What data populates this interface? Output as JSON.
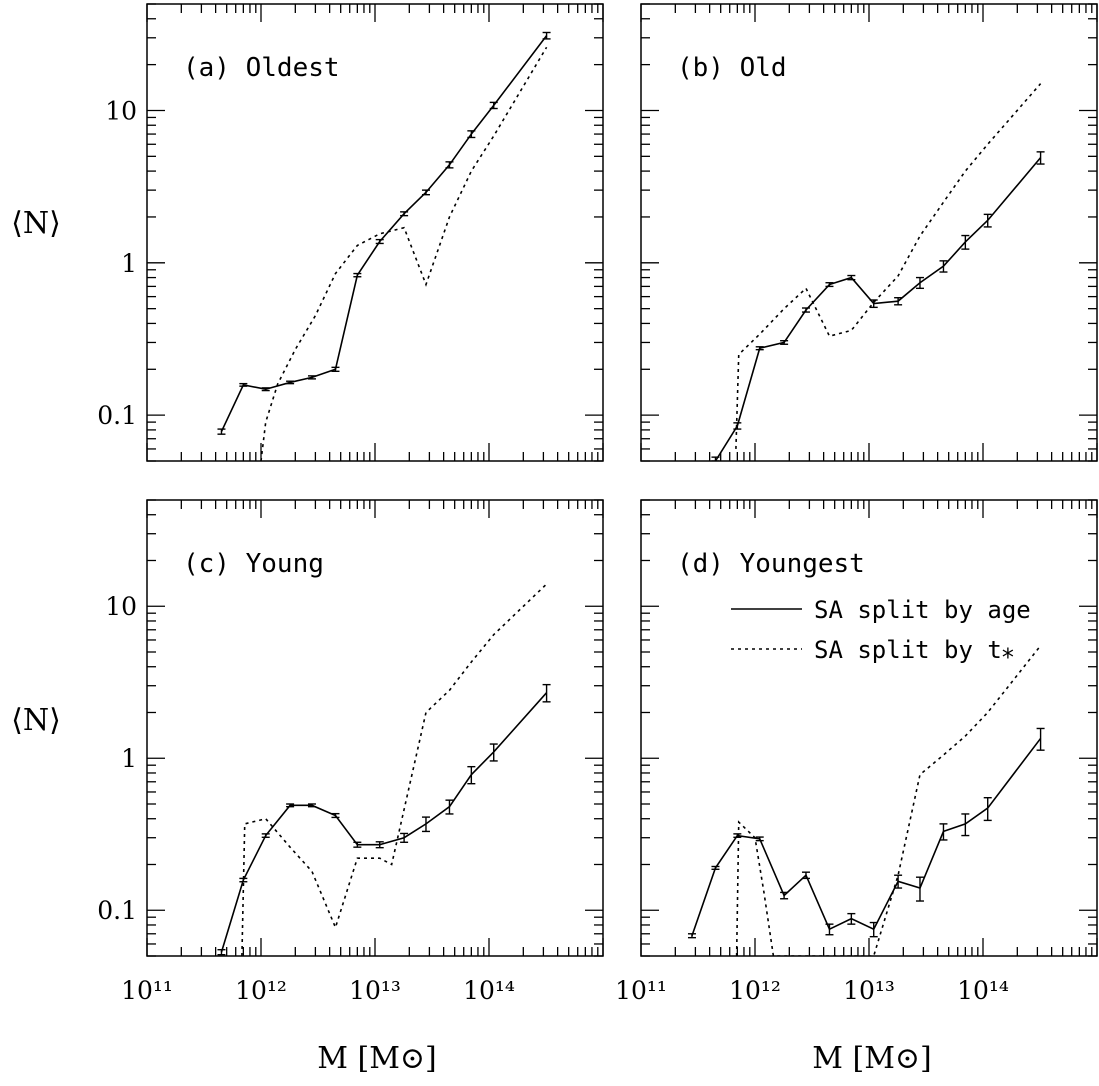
{
  "figure": {
    "ylabel": "⟨N⟩",
    "xlabel": "M [M⊙]",
    "x_tick_labels": [
      "10¹¹",
      "10¹²",
      "10¹³",
      "10¹⁴"
    ],
    "y_tick_labels": [
      "0.1",
      "1",
      "10"
    ],
    "legend": {
      "solid": "SA split by age",
      "dotted": "SA split by t⁎",
      "placement": "inside panel (d), upper right"
    }
  },
  "chart_data": [
    {
      "type": "line",
      "panel": "a",
      "title": "(a) Oldest",
      "x_scale": "log",
      "y_scale": "log",
      "xlim": [
        100000000000.0,
        1000000000000000.0
      ],
      "ylim": [
        0.05,
        50
      ],
      "series": [
        {
          "name": "SA split by age",
          "style": "solid",
          "x": [
            450000000000.0,
            700000000000.0,
            1100000000000.0,
            1800000000000.0,
            2800000000000.0,
            4500000000000.0,
            7000000000000.0,
            11000000000000.0,
            18000000000000.0,
            28000000000000.0,
            45000000000000.0,
            70000000000000.0,
            110000000000000.0,
            320000000000000.0
          ],
          "y": [
            0.078,
            0.158,
            0.148,
            0.164,
            0.177,
            0.2,
            0.83,
            1.38,
            2.1,
            2.9,
            4.4,
            7.0,
            10.8,
            31
          ],
          "err": [
            0.003,
            0.003,
            0.003,
            0.003,
            0.004,
            0.006,
            0.02,
            0.04,
            0.06,
            0.1,
            0.2,
            0.35,
            0.5,
            1.5
          ]
        },
        {
          "name": "SA split by t⁎",
          "style": "dotted",
          "x": [
            1000000000000.0,
            1100000000000.0,
            1400000000000.0,
            2000000000000.0,
            3000000000000.0,
            4500000000000.0,
            7000000000000.0,
            11000000000000.0,
            18000000000000.0,
            28000000000000.0,
            45000000000000.0,
            70000000000000.0,
            110000000000000.0,
            320000000000000.0
          ],
          "y": [
            0.05,
            0.09,
            0.16,
            0.27,
            0.45,
            0.85,
            1.3,
            1.55,
            1.7,
            0.72,
            2.0,
            4.0,
            6.8,
            26
          ]
        }
      ]
    },
    {
      "type": "line",
      "panel": "b",
      "title": "(b) Old",
      "x_scale": "log",
      "y_scale": "log",
      "xlim": [
        100000000000.0,
        1000000000000000.0
      ],
      "ylim": [
        0.05,
        50
      ],
      "series": [
        {
          "name": "SA split by age",
          "style": "solid",
          "x": [
            450000000000.0,
            700000000000.0,
            1100000000000.0,
            1800000000000.0,
            2800000000000.0,
            4500000000000.0,
            7000000000000.0,
            11000000000000.0,
            18000000000000.0,
            28000000000000.0,
            45000000000000.0,
            70000000000000.0,
            110000000000000.0,
            320000000000000.0
          ],
          "y": [
            0.05,
            0.085,
            0.275,
            0.3,
            0.49,
            0.72,
            0.8,
            0.54,
            0.56,
            0.74,
            0.95,
            1.37,
            1.9,
            4.9
          ],
          "err": [
            0.003,
            0.004,
            0.006,
            0.008,
            0.015,
            0.02,
            0.025,
            0.03,
            0.03,
            0.06,
            0.08,
            0.14,
            0.18,
            0.45
          ]
        },
        {
          "name": "SA split by t⁎",
          "style": "dotted",
          "x": [
            680000000000.0,
            720000000000.0,
            1100000000000.0,
            1800000000000.0,
            2800000000000.0,
            4500000000000.0,
            7000000000000.0,
            11000000000000.0,
            18000000000000.0,
            28000000000000.0,
            45000000000000.0,
            70000000000000.0,
            110000000000000.0,
            320000000000000.0
          ],
          "y": [
            0.06,
            0.25,
            0.34,
            0.5,
            0.68,
            0.33,
            0.36,
            0.55,
            0.82,
            1.5,
            2.5,
            4.0,
            6.0,
            15
          ]
        }
      ]
    },
    {
      "type": "line",
      "panel": "c",
      "title": "(c) Young",
      "x_scale": "log",
      "y_scale": "log",
      "xlim": [
        100000000000.0,
        1000000000000000.0
      ],
      "ylim": [
        0.05,
        50
      ],
      "series": [
        {
          "name": "SA split by age",
          "style": "solid",
          "x": [
            450000000000.0,
            700000000000.0,
            1100000000000.0,
            1800000000000.0,
            2800000000000.0,
            4500000000000.0,
            7000000000000.0,
            11000000000000.0,
            18000000000000.0,
            28000000000000.0,
            45000000000000.0,
            70000000000000.0,
            110000000000000.0,
            320000000000000.0
          ],
          "y": [
            0.053,
            0.158,
            0.31,
            0.49,
            0.49,
            0.42,
            0.27,
            0.27,
            0.3,
            0.37,
            0.48,
            0.78,
            1.1,
            2.7
          ],
          "err": [
            0.002,
            0.004,
            0.008,
            0.01,
            0.01,
            0.012,
            0.01,
            0.012,
            0.02,
            0.04,
            0.05,
            0.1,
            0.14,
            0.35
          ]
        },
        {
          "name": "SA split by t⁎",
          "style": "dotted",
          "x": [
            680000000000.0,
            720000000000.0,
            1100000000000.0,
            1800000000000.0,
            2800000000000.0,
            4500000000000.0,
            7000000000000.0,
            11000000000000.0,
            14000000000000.0,
            28000000000000.0,
            45000000000000.0,
            70000000000000.0,
            110000000000000.0,
            320000000000000.0
          ],
          "y": [
            0.05,
            0.37,
            0.4,
            0.26,
            0.18,
            0.077,
            0.22,
            0.22,
            0.2,
            2.0,
            2.8,
            4.3,
            6.5,
            14
          ]
        }
      ]
    },
    {
      "type": "line",
      "panel": "d",
      "title": "(d) Youngest",
      "x_scale": "log",
      "y_scale": "log",
      "xlim": [
        100000000000.0,
        1000000000000000.0
      ],
      "ylim": [
        0.05,
        50
      ],
      "series": [
        {
          "name": "SA split by age",
          "style": "solid",
          "x": [
            280000000000.0,
            450000000000.0,
            700000000000.0,
            1100000000000.0,
            1800000000000.0,
            2800000000000.0,
            4500000000000.0,
            7000000000000.0,
            11000000000000.0,
            18000000000000.0,
            28000000000000.0,
            45000000000000.0,
            70000000000000.0,
            110000000000000.0,
            320000000000000.0
          ],
          "y": [
            0.068,
            0.19,
            0.31,
            0.295,
            0.125,
            0.17,
            0.075,
            0.088,
            0.075,
            0.155,
            0.14,
            0.33,
            0.37,
            0.47,
            1.35
          ],
          "err": [
            0.002,
            0.004,
            0.008,
            0.008,
            0.006,
            0.008,
            0.006,
            0.007,
            0.008,
            0.015,
            0.025,
            0.04,
            0.06,
            0.08,
            0.22
          ]
        },
        {
          "name": "SA split by t⁎",
          "style": "dotted",
          "x": [
            690000000000.0,
            720000000000.0,
            1000000000000.0,
            1200000000000.0,
            1450000000000.0,
            11000000000000.0,
            18000000000000.0,
            28000000000000.0,
            45000000000000.0,
            70000000000000.0,
            110000000000000.0,
            320000000000000.0
          ],
          "y": [
            0.05,
            0.38,
            0.3,
            0.13,
            0.05,
            0.05,
            0.17,
            0.78,
            1.05,
            1.4,
            2.0,
            5.5
          ]
        }
      ]
    }
  ]
}
